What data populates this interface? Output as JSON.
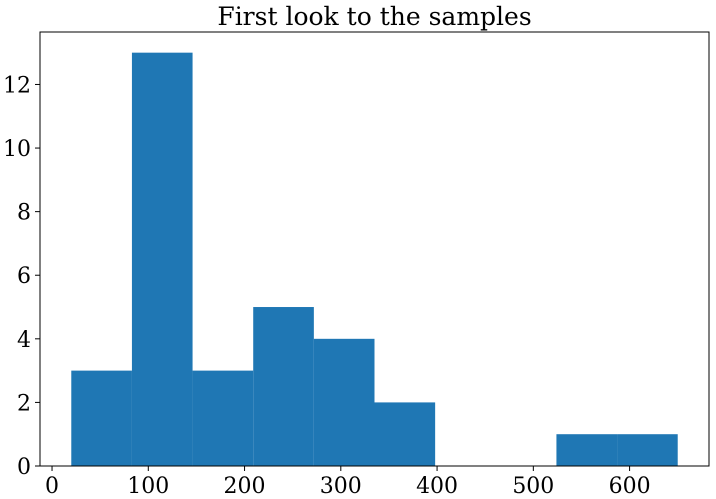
{
  "chart_data": {
    "type": "bar",
    "title": "First look to the samples",
    "xlabel": "",
    "ylabel": "",
    "bins": [
      {
        "x_start": 20,
        "x_end": 83,
        "count": 3
      },
      {
        "x_start": 83,
        "x_end": 146,
        "count": 13
      },
      {
        "x_start": 146,
        "x_end": 209,
        "count": 3
      },
      {
        "x_start": 209,
        "x_end": 272,
        "count": 5
      },
      {
        "x_start": 272,
        "x_end": 335,
        "count": 4
      },
      {
        "x_start": 335,
        "x_end": 398,
        "count": 2
      },
      {
        "x_start": 398,
        "x_end": 461,
        "count": 0
      },
      {
        "x_start": 461,
        "x_end": 524,
        "count": 0
      },
      {
        "x_start": 524,
        "x_end": 587,
        "count": 1
      },
      {
        "x_start": 587,
        "x_end": 650,
        "count": 1
      }
    ],
    "xlim": [
      -12.5,
      682.5
    ],
    "ylim": [
      0,
      13.65
    ],
    "xticks": [
      "0",
      "100",
      "200",
      "300",
      "400",
      "500",
      "600"
    ],
    "yticks": [
      "0",
      "2",
      "4",
      "6",
      "8",
      "10",
      "12"
    ],
    "grid": false,
    "legend": "none",
    "bar_color": "#1f77b4"
  }
}
